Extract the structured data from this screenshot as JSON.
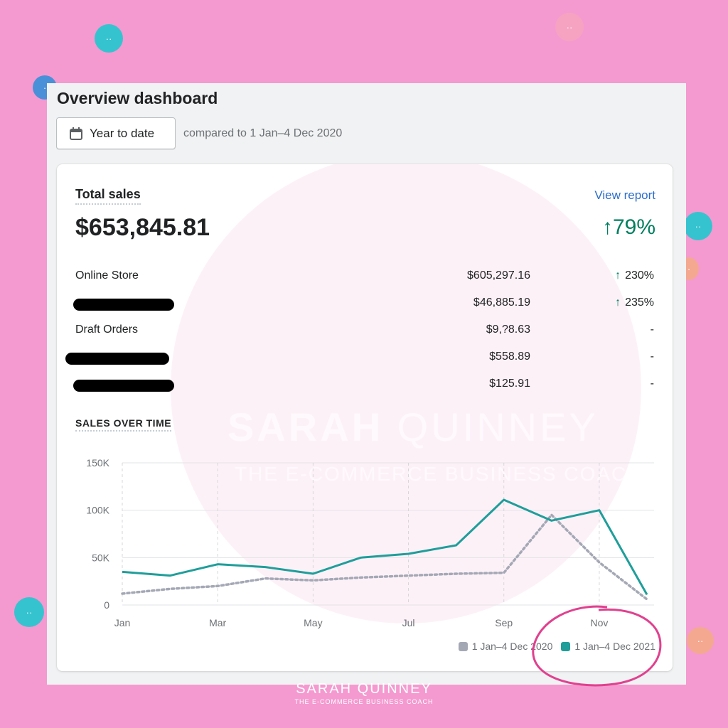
{
  "page": {
    "title": "Overview dashboard",
    "date_range_button": "Year to date",
    "compare_text": "compared to 1 Jan–4 Dec 2020"
  },
  "total_sales": {
    "label": "Total sales",
    "view_report": "View report",
    "value": "$653,845.81",
    "change": "79%"
  },
  "channels": [
    {
      "name": "Online Store",
      "amount": "$605,297.16",
      "change": "230%",
      "trend": "up",
      "redacted": false
    },
    {
      "name": "",
      "amount": "$46,885.19",
      "change": "235%",
      "trend": "up",
      "redacted": true
    },
    {
      "name": "Draft Orders",
      "amount": "$9,?8.63",
      "change": "-",
      "trend": "none",
      "redacted": false
    },
    {
      "name": "",
      "amount": "$558.89",
      "change": "-",
      "trend": "none",
      "redacted": true
    },
    {
      "name": "",
      "amount": "$125.91",
      "change": "-",
      "trend": "none",
      "redacted": true
    }
  ],
  "sales_over_time": {
    "label": "SALES OVER TIME"
  },
  "chart_data": {
    "type": "line",
    "x": [
      "Jan",
      "Feb",
      "Mar",
      "Apr",
      "May",
      "Jun",
      "Jul",
      "Aug",
      "Sep",
      "Oct",
      "Nov",
      "Dec"
    ],
    "x_tick_labels": [
      "Jan",
      "Mar",
      "May",
      "Jul",
      "Sep",
      "Nov"
    ],
    "y_tick_labels": [
      "150K",
      "100K",
      "50K",
      "0"
    ],
    "ylim": [
      0,
      150000
    ],
    "grid": true,
    "legend_position": "bottom-right",
    "series": [
      {
        "name": "1 Jan–4 Dec 2020",
        "color": "#a4a8b5",
        "style": "dotted",
        "values": [
          12000,
          17000,
          20000,
          28000,
          26000,
          29000,
          31000,
          33000,
          34000,
          95000,
          45000,
          6000
        ]
      },
      {
        "name": "1 Jan–4 Dec 2021",
        "color": "#1f9e9a",
        "style": "solid",
        "values": [
          35000,
          31000,
          43000,
          40000,
          33000,
          50000,
          54000,
          63000,
          111000,
          89000,
          100000,
          11000
        ]
      }
    ]
  },
  "watermark": {
    "brand_bold": "SARAH",
    "brand_light": " QUINNEY",
    "tagline": "THE E-COMMERCE BUSINESS COACH",
    "footer_brand": "SARAH QUINNEY",
    "footer_tagline": "THE E-COMMERCE BUSINESS COACH"
  },
  "colors": {
    "background": "#f49ad0",
    "accent_teal": "#1f9e9a",
    "positive": "#007f5f",
    "link": "#2c6ecb"
  }
}
